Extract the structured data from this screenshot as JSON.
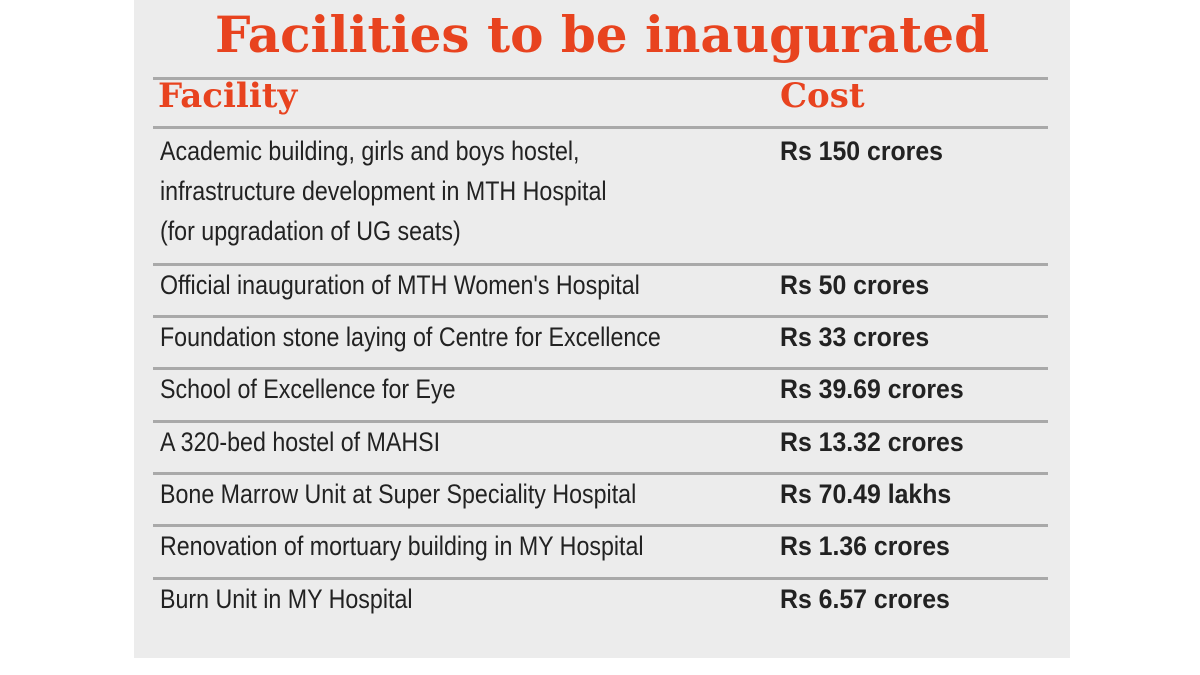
{
  "title": "Facilities to be inaugurated",
  "table": {
    "headers": {
      "facility": "Facility",
      "cost": "Cost"
    },
    "rows": [
      {
        "facility_lines": [
          "Academic building, girls and boys hostel,",
          "infrastructure development in MTH Hospital",
          "(for upgradation of UG seats)"
        ],
        "cost": "Rs 150 crores"
      },
      {
        "facility_lines": [
          "Official inauguration of MTH Women's Hospital"
        ],
        "cost": "Rs 50 crores"
      },
      {
        "facility_lines": [
          "Foundation stone laying of Centre for Excellence"
        ],
        "cost": "Rs 33 crores"
      },
      {
        "facility_lines": [
          "School of Excellence for Eye"
        ],
        "cost": "Rs 39.69 crores"
      },
      {
        "facility_lines": [
          "A 320-bed hostel of MAHSI"
        ],
        "cost": "Rs 13.32 crores"
      },
      {
        "facility_lines": [
          "Bone Marrow Unit at Super Speciality Hospital"
        ],
        "cost": "Rs 70.49 lakhs"
      },
      {
        "facility_lines": [
          "Renovation of mortuary building in MY Hospital"
        ],
        "cost": "Rs 1.36 crores"
      },
      {
        "facility_lines": [
          "Burn Unit in MY Hospital"
        ],
        "cost": "Rs 6.57 crores"
      }
    ]
  },
  "colors": {
    "accent": "#e8431f",
    "panel_background": "#ececec",
    "rule": "#a9a9a9",
    "text": "#222222"
  }
}
